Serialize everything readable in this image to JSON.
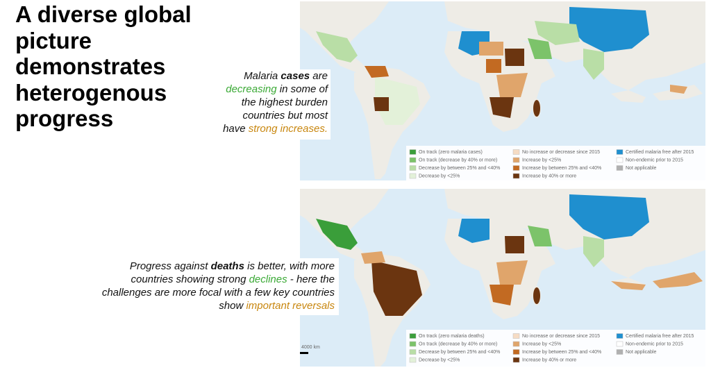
{
  "title": "A diverse global picture demonstrates heterogenous progress",
  "callouts": [
    {
      "segments": [
        {
          "text": "Malaria ",
          "style": "plain"
        },
        {
          "text": "cases",
          "style": "bold"
        },
        {
          "text": " are ",
          "style": "plain"
        },
        {
          "text": "decreasing",
          "style": "green"
        },
        {
          "text": " in some of the highest burden countries but most have ",
          "style": "plain"
        },
        {
          "text": "strong increases.",
          "style": "orange"
        }
      ]
    },
    {
      "segments": [
        {
          "text": "Progress against ",
          "style": "plain"
        },
        {
          "text": "deaths",
          "style": "bold"
        },
        {
          "text": " is better, with more countries showing strong ",
          "style": "plain"
        },
        {
          "text": "declines",
          "style": "green"
        },
        {
          "text": " - here the challenges are more focal with a few key countries show ",
          "style": "plain"
        },
        {
          "text": "important reversals",
          "style": "orange"
        }
      ]
    }
  ],
  "maps": [
    {
      "legend": [
        {
          "label": "On track (zero malaria cases)",
          "color": "#3a9e3a"
        },
        {
          "label": "On track (decrease by 40% or more)",
          "color": "#7cc36a"
        },
        {
          "label": "Decrease by between 25% and <40%",
          "color": "#b9dea6"
        },
        {
          "label": "Decrease by <25%",
          "color": "#e3f1d9"
        },
        {
          "label": "No increase or decrease since 2015",
          "color": "#f6dcc4"
        },
        {
          "label": "Increase by <25%",
          "color": "#e0a56b"
        },
        {
          "label": "Increase by between 25% and <40%",
          "color": "#c26a22"
        },
        {
          "label": "Increase by 40% or more",
          "color": "#6b3510"
        },
        {
          "label": "Certified malaria free after 2015",
          "color": "#1f8fcf"
        },
        {
          "label": "Non-endemic prior to 2015",
          "color": "#ffffff"
        },
        {
          "label": "Not applicable",
          "color": "#b0b0b0"
        }
      ]
    },
    {
      "scale": "4000 km",
      "legend": [
        {
          "label": "On track (zero malaria deaths)",
          "color": "#3a9e3a"
        },
        {
          "label": "On track (decrease by 40% or more)",
          "color": "#7cc36a"
        },
        {
          "label": "Decrease by between 25% and <40%",
          "color": "#b9dea6"
        },
        {
          "label": "Decrease by <25%",
          "color": "#e3f1d9"
        },
        {
          "label": "No increase or decrease since 2015",
          "color": "#f6dcc4"
        },
        {
          "label": "Increase by <25%",
          "color": "#e0a56b"
        },
        {
          "label": "Increase by between 25% and <40%",
          "color": "#c26a22"
        },
        {
          "label": "Increase by 40% or more",
          "color": "#6b3510"
        },
        {
          "label": "Certified malaria free after 2015",
          "color": "#1f8fcf"
        },
        {
          "label": "Non-endemic prior to 2015",
          "color": "#ffffff"
        },
        {
          "label": "Not applicable",
          "color": "#b0b0b0"
        }
      ]
    }
  ]
}
